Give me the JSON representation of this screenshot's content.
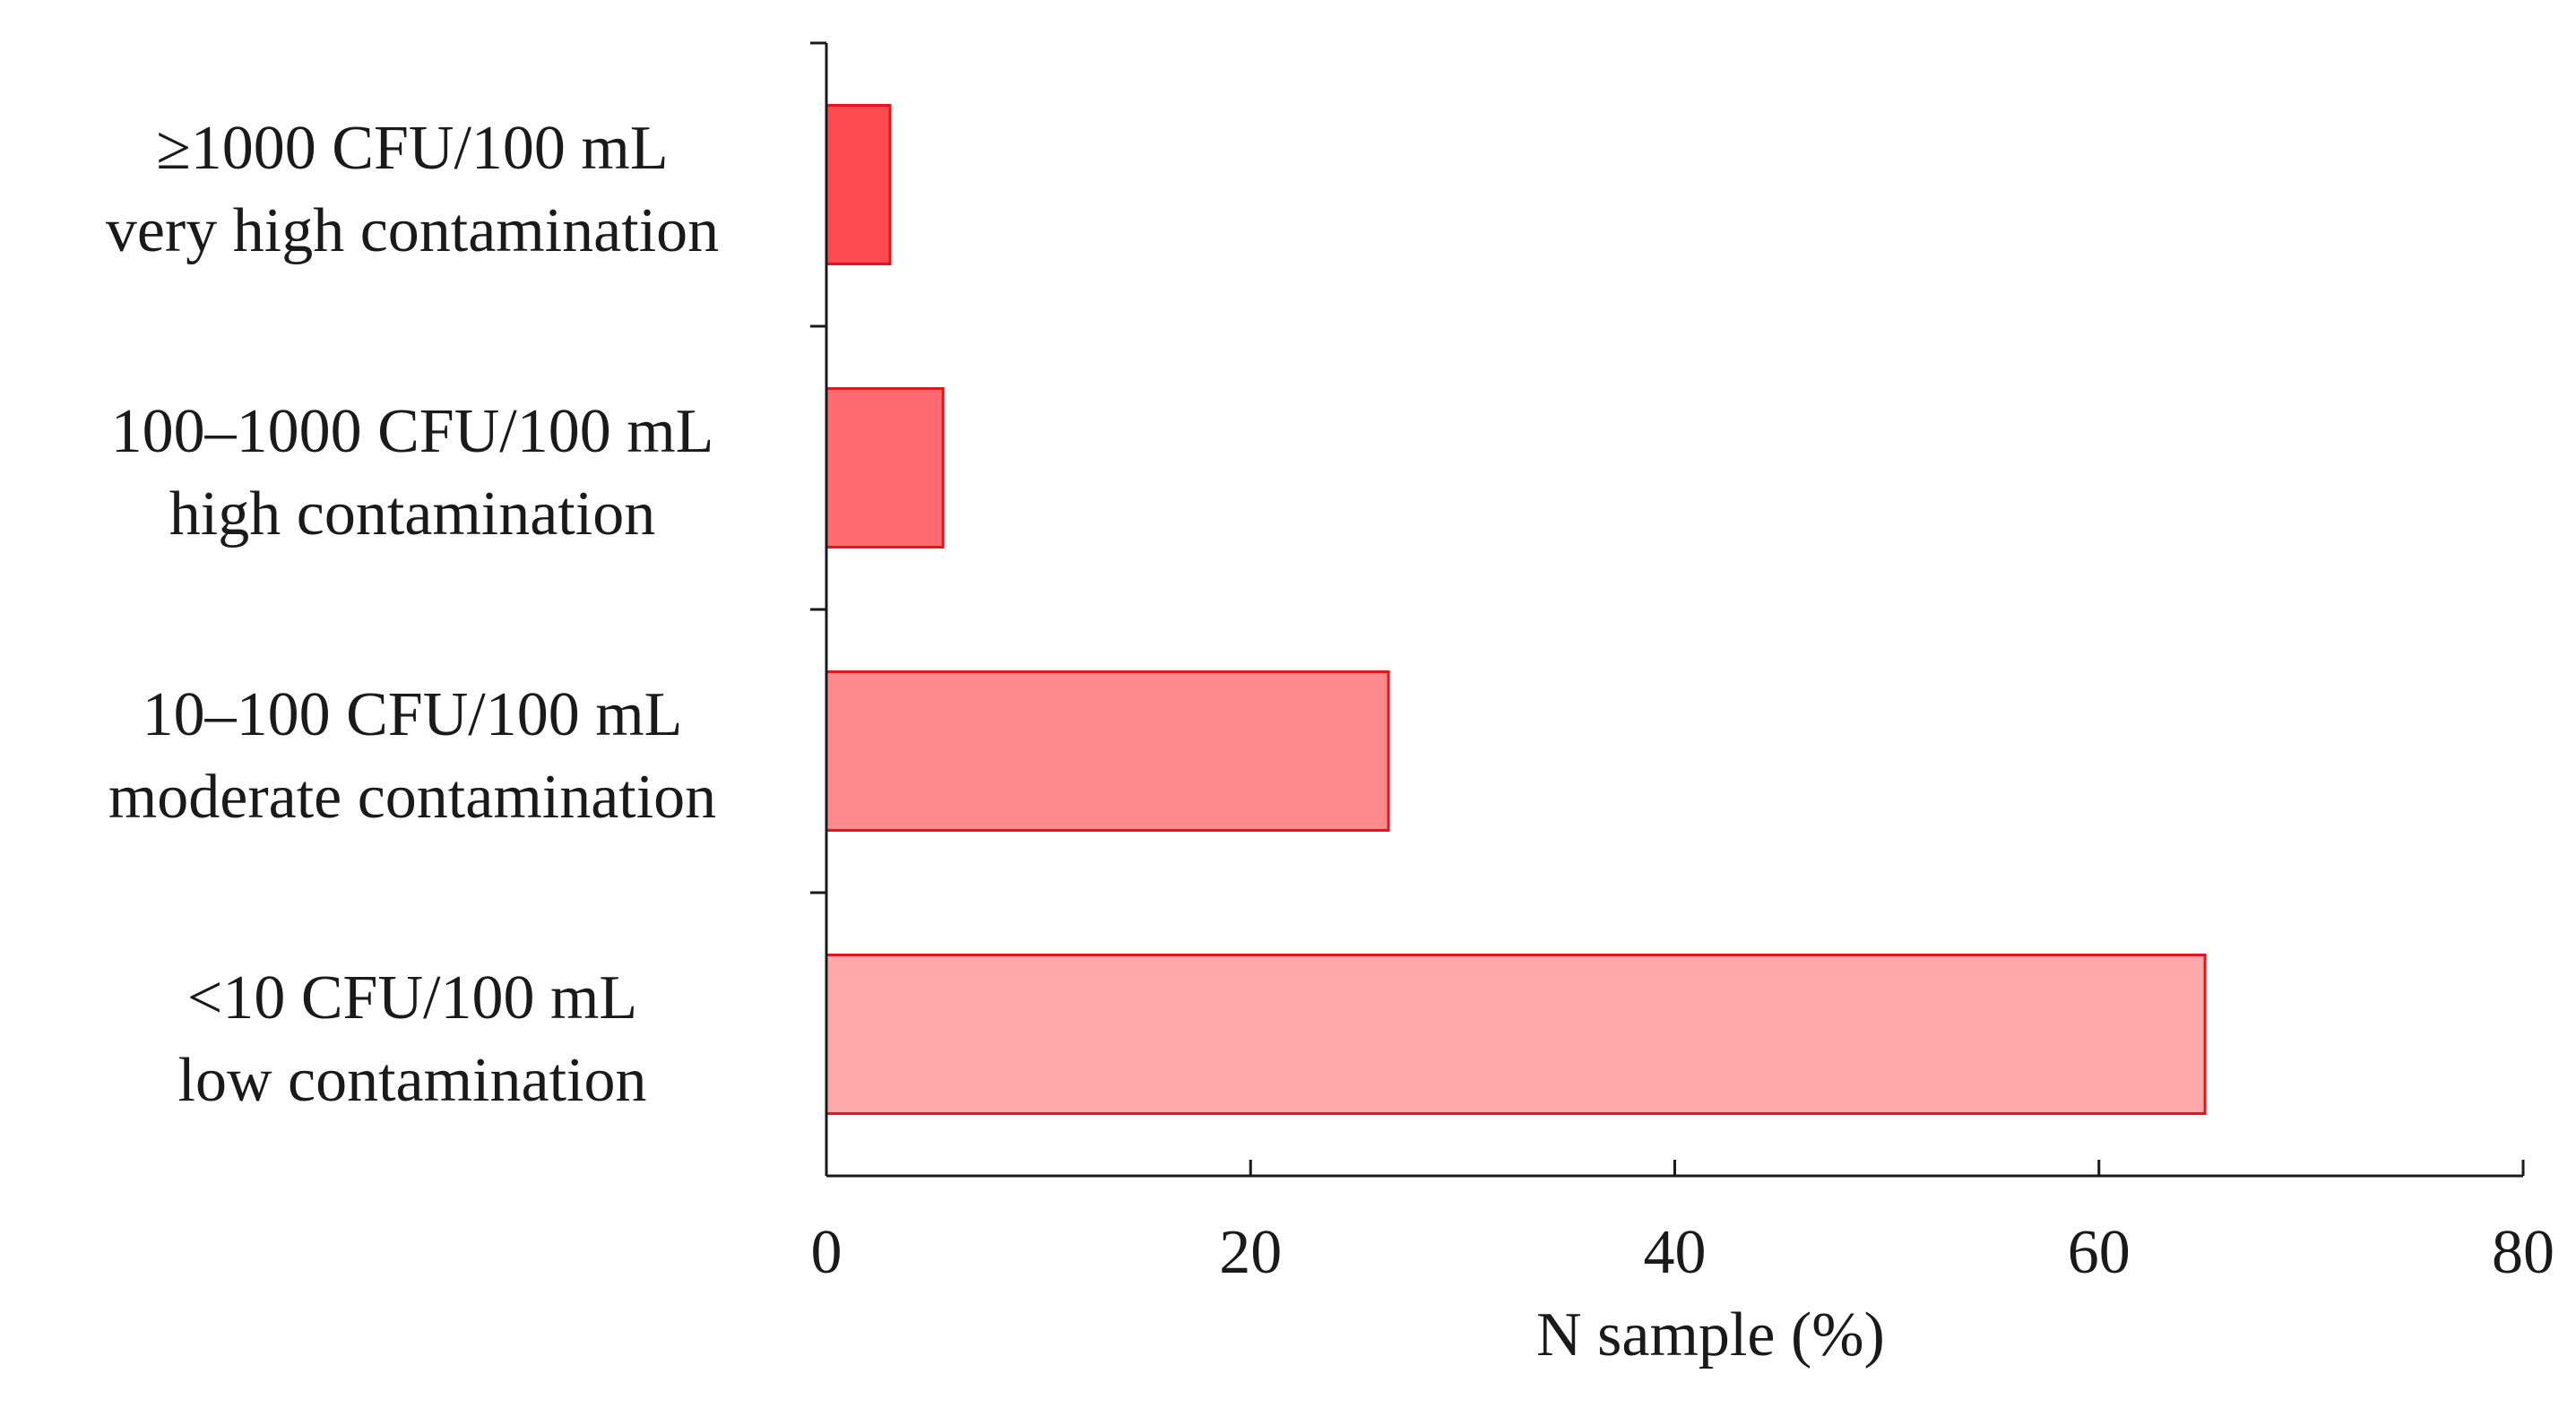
{
  "chart_data": {
    "type": "bar",
    "orientation": "horizontal",
    "categories": [
      {
        "line1": "≥1000 CFU/100 mL",
        "line2": "very high contamination",
        "value": 3,
        "color": "#ff4a4f"
      },
      {
        "line1": "100–1000  CFU/100 mL",
        "line2": "high contamination",
        "value": 5.5,
        "color": "#ff6b70"
      },
      {
        "line1": "10–100  CFU/100 mL",
        "line2": "moderate contamination",
        "value": 26.5,
        "color": "#ff8a8d"
      },
      {
        "line1": "<10 CFU/100 mL",
        "line2": "low contamination",
        "value": 65,
        "color": "#ffa9ab"
      }
    ],
    "bar_edge_color": "#e8121a",
    "xlim": [
      0,
      80
    ],
    "xticks": [
      0,
      20,
      40,
      60,
      80
    ],
    "xlabel": "N sample (%)",
    "grid": false,
    "legend": false
  }
}
